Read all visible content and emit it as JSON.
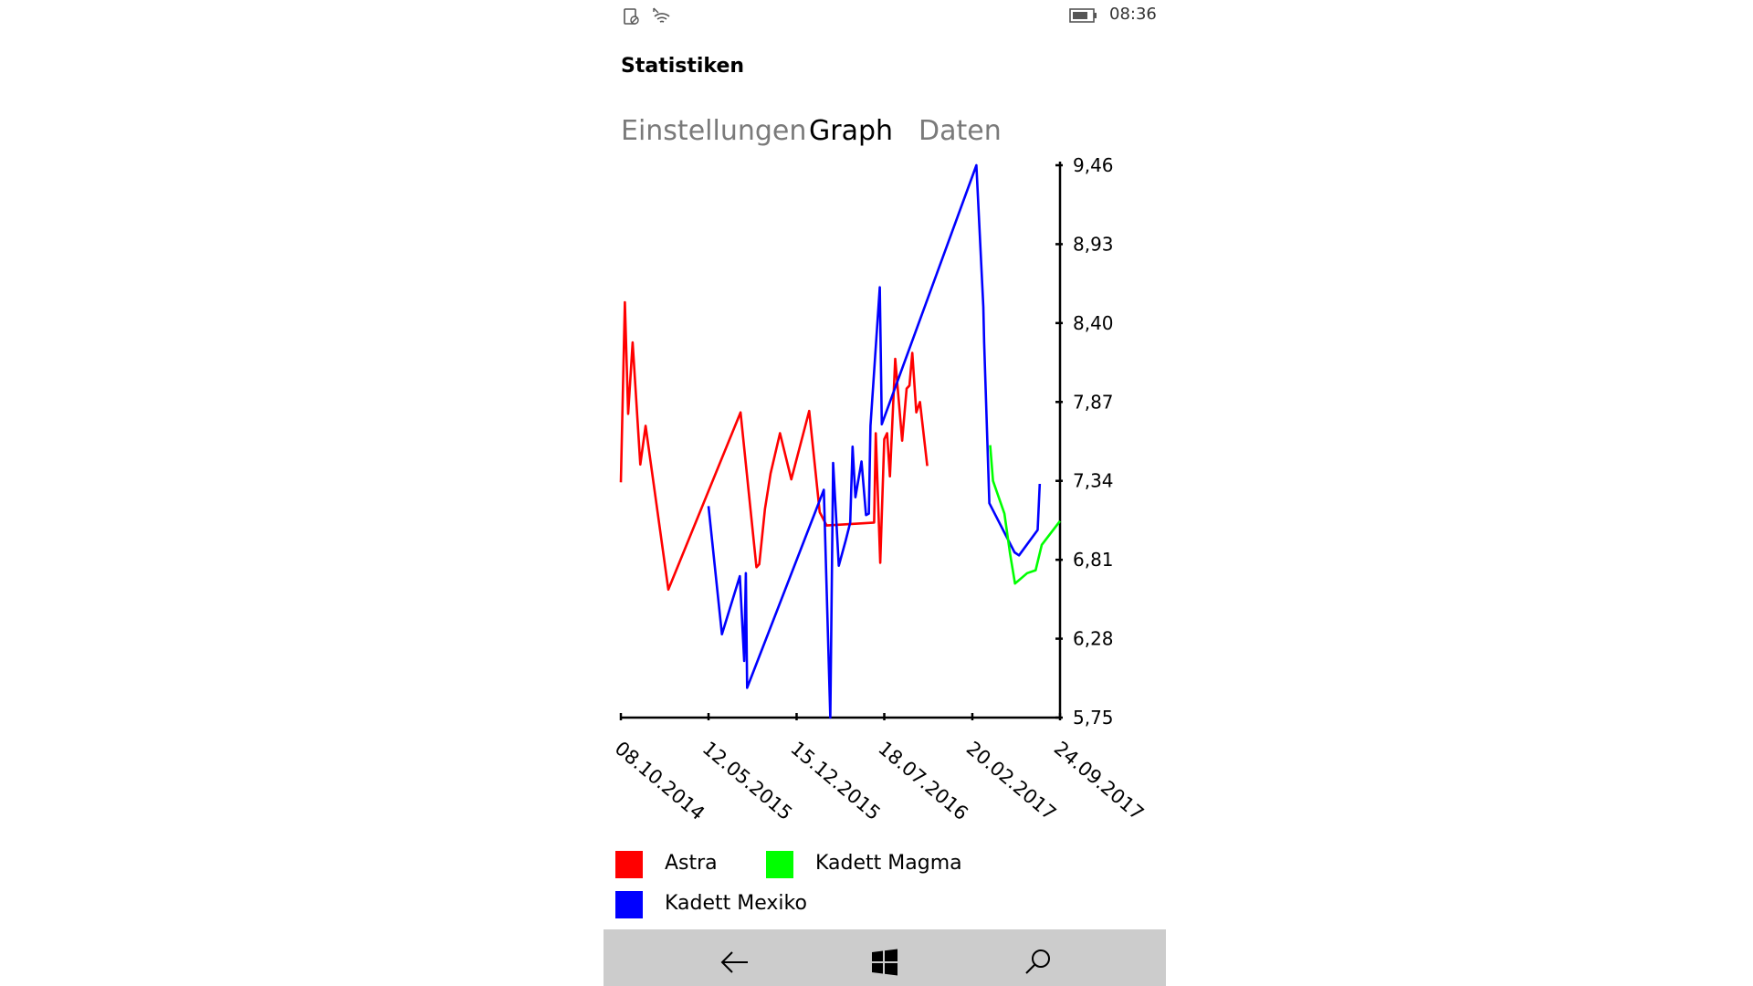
{
  "status_bar": {
    "icons": [
      "phone-status-icon",
      "wifi-icon",
      "battery-icon"
    ],
    "time": "08:36"
  },
  "header": {
    "title": "Statistiken"
  },
  "tabs": [
    {
      "label": "Einstellungen",
      "active": false
    },
    {
      "label": "Graph",
      "active": true
    },
    {
      "label": "Daten",
      "active": false
    }
  ],
  "colors": {
    "astra": "#ff0000",
    "kadett_mexiko": "#0000ff",
    "kadett_magma": "#00ff00",
    "nav_bar": "#cccccc"
  },
  "chart_data": {
    "type": "line",
    "x_ticks": [
      "08.10.2014",
      "12.05.2015",
      "15.12.2015",
      "18.07.2016",
      "20.02.2017",
      "24.09.2017"
    ],
    "y_ticks": [
      "5,75",
      "6,28",
      "6,81",
      "7,34",
      "7,87",
      "8,40",
      "8,93",
      "9,46"
    ],
    "x_range": [
      "08.10.2014",
      "24.09.2017"
    ],
    "y_range": [
      5.75,
      9.46
    ],
    "y_axis_position": "right",
    "grid": false,
    "legend_position": "bottom",
    "series": [
      {
        "name": "Astra",
        "color": "#ff0000",
        "points": [
          [
            "08.10.2014",
            7.33
          ],
          [
            "18.10.2014",
            8.54
          ],
          [
            "26.10.2014",
            7.79
          ],
          [
            "06.11.2014",
            8.27
          ],
          [
            "25.11.2014",
            7.45
          ],
          [
            "08.12.2014",
            7.71
          ],
          [
            "02.02.2015",
            6.61
          ],
          [
            "30.07.2015",
            7.8
          ],
          [
            "07.09.2015",
            6.76
          ],
          [
            "14.09.2015",
            6.78
          ],
          [
            "28.09.2015",
            7.15
          ],
          [
            "12.10.2015",
            7.39
          ],
          [
            "04.11.2015",
            7.66
          ],
          [
            "02.12.2015",
            7.35
          ],
          [
            "15.01.2016",
            7.81
          ],
          [
            "10.02.2016",
            7.13
          ],
          [
            "27.02.2016",
            7.04
          ],
          [
            "23.06.2016",
            7.06
          ],
          [
            "27.06.2016",
            7.66
          ],
          [
            "08.07.2016",
            6.79
          ],
          [
            "18.07.2016",
            7.62
          ],
          [
            "25.07.2016",
            7.66
          ],
          [
            "01.08.2016",
            7.37
          ],
          [
            "14.08.2016",
            8.16
          ],
          [
            "31.08.2016",
            7.61
          ],
          [
            "11.09.2016",
            7.96
          ],
          [
            "18.09.2016",
            7.98
          ],
          [
            "25.09.2016",
            8.2
          ],
          [
            "05.10.2016",
            7.8
          ],
          [
            "14.10.2016",
            7.87
          ],
          [
            "01.11.2016",
            7.44
          ]
        ]
      },
      {
        "name": "Kadett Mexiko",
        "color": "#0000ff",
        "points": [
          [
            "12.05.2015",
            7.17
          ],
          [
            "14.06.2015",
            6.31
          ],
          [
            "28.07.2015",
            6.7
          ],
          [
            "08.08.2015",
            6.13
          ],
          [
            "12.08.2015",
            6.72
          ],
          [
            "15.08.2015",
            5.95
          ],
          [
            "20.02.2016",
            7.28
          ],
          [
            "07.03.2016",
            5.75
          ],
          [
            "14.03.2016",
            7.46
          ],
          [
            "28.03.2016",
            6.77
          ],
          [
            "14.04.2016",
            6.94
          ],
          [
            "25.04.2016",
            7.06
          ],
          [
            "01.05.2016",
            7.57
          ],
          [
            "08.05.2016",
            7.23
          ],
          [
            "23.05.2016",
            7.47
          ],
          [
            "03.06.2016",
            7.11
          ],
          [
            "10.06.2016",
            7.12
          ],
          [
            "14.06.2016",
            7.71
          ],
          [
            "07.07.2016",
            8.64
          ],
          [
            "12.07.2016",
            7.72
          ],
          [
            "02.03.2017",
            9.46
          ],
          [
            "19.03.2017",
            8.51
          ],
          [
            "21.03.2017",
            8.27
          ],
          [
            "03.04.2017",
            7.19
          ],
          [
            "04.06.2017",
            6.86
          ],
          [
            "15.06.2017",
            6.84
          ],
          [
            "31.07.2017",
            7.01
          ],
          [
            "05.08.2017",
            7.32
          ]
        ]
      },
      {
        "name": "Kadett Magma",
        "color": "#00ff00",
        "points": [
          [
            "05.04.2017",
            7.58
          ],
          [
            "12.04.2017",
            7.34
          ],
          [
            "10.05.2017",
            7.12
          ],
          [
            "24.05.2017",
            6.85
          ],
          [
            "05.06.2017",
            6.65
          ],
          [
            "05.07.2017",
            6.72
          ],
          [
            "26.07.2017",
            6.74
          ],
          [
            "10.08.2017",
            6.91
          ],
          [
            "24.09.2017",
            7.07
          ]
        ]
      }
    ]
  },
  "legend": [
    {
      "label": "Astra",
      "color": "#ff0000"
    },
    {
      "label": "Kadett Magma",
      "color": "#00ff00"
    },
    {
      "label": "Kadett Mexiko",
      "color": "#0000ff"
    }
  ],
  "nav_bar": {
    "buttons": [
      "back-arrow-icon",
      "windows-icon",
      "search-icon"
    ]
  }
}
